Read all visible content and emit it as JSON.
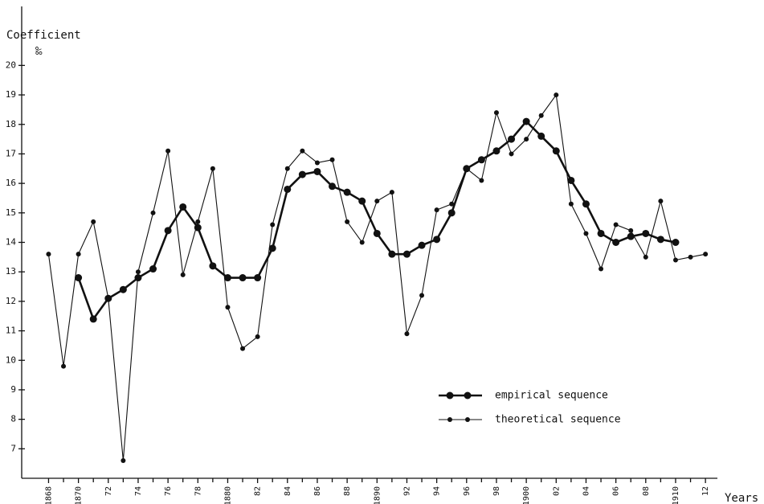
{
  "chart_data": {
    "type": "line",
    "y_label": "Coefficient",
    "y_unit": "‰",
    "x_label": "Years",
    "x": [
      1868,
      1869,
      1870,
      1871,
      1872,
      1873,
      1874,
      1875,
      1876,
      1877,
      1878,
      1879,
      1880,
      1881,
      1882,
      1883,
      1884,
      1885,
      1886,
      1887,
      1888,
      1889,
      1890,
      1891,
      1892,
      1893,
      1894,
      1895,
      1896,
      1897,
      1898,
      1899,
      1900,
      1901,
      1902,
      1903,
      1904,
      1905,
      1906,
      1907,
      1908,
      1909,
      1910,
      1911,
      1912
    ],
    "series": [
      {
        "name": "empirical sequence",
        "color": "#111111",
        "width": 2.6,
        "dot": 4.5,
        "values": [
          null,
          null,
          12.8,
          11.4,
          12.1,
          12.4,
          12.8,
          13.1,
          14.4,
          15.2,
          14.5,
          13.2,
          12.8,
          12.8,
          12.8,
          13.8,
          15.8,
          16.3,
          16.4,
          15.9,
          15.7,
          15.4,
          14.3,
          13.6,
          13.6,
          13.9,
          14.1,
          15.0,
          16.5,
          16.8,
          17.1,
          17.5,
          18.1,
          17.6,
          17.1,
          16.1,
          15.3,
          14.3,
          14.0,
          14.2,
          14.3,
          14.1,
          14.0,
          null,
          null
        ]
      },
      {
        "name": "theoretical sequence",
        "color": "#111111",
        "width": 1.1,
        "dot": 3,
        "values": [
          13.6,
          9.8,
          13.6,
          14.7,
          12.1,
          6.6,
          13.0,
          15.0,
          17.1,
          12.9,
          14.7,
          16.5,
          11.8,
          10.4,
          10.8,
          14.6,
          16.5,
          17.1,
          16.7,
          16.8,
          14.7,
          14.0,
          15.4,
          15.7,
          10.9,
          12.2,
          15.1,
          15.3,
          16.5,
          16.1,
          18.4,
          17.0,
          17.5,
          18.3,
          19.0,
          15.3,
          14.3,
          13.1,
          14.6,
          14.4,
          13.5,
          15.4,
          13.4,
          13.5,
          13.6
        ]
      }
    ],
    "xlim": [
      1866.2,
      1912.8
    ],
    "xticks": [
      {
        "value": 1868,
        "label": "1868"
      },
      {
        "value": 1870,
        "label": "1870"
      },
      {
        "value": 1872,
        "label": "72"
      },
      {
        "value": 1874,
        "label": "74"
      },
      {
        "value": 1876,
        "label": "76"
      },
      {
        "value": 1878,
        "label": "78"
      },
      {
        "value": 1880,
        "label": "1880"
      },
      {
        "value": 1882,
        "label": "82"
      },
      {
        "value": 1884,
        "label": "84"
      },
      {
        "value": 1886,
        "label": "86"
      },
      {
        "value": 1888,
        "label": "88"
      },
      {
        "value": 1890,
        "label": "1890"
      },
      {
        "value": 1892,
        "label": "92"
      },
      {
        "value": 1894,
        "label": "94"
      },
      {
        "value": 1896,
        "label": "96"
      },
      {
        "value": 1898,
        "label": "98"
      },
      {
        "value": 1900,
        "label": "1900"
      },
      {
        "value": 1902,
        "label": "02"
      },
      {
        "value": 1904,
        "label": "04"
      },
      {
        "value": 1906,
        "label": "06"
      },
      {
        "value": 1908,
        "label": "08"
      },
      {
        "value": 1910,
        "label": "1910"
      },
      {
        "value": 1912,
        "label": "12"
      }
    ],
    "xminor_ticks": [
      1869,
      1871,
      1873,
      1875,
      1877,
      1879,
      1881,
      1883,
      1885,
      1887,
      1889,
      1891,
      1893,
      1895,
      1897,
      1899,
      1901,
      1903,
      1905,
      1907,
      1909,
      1911
    ],
    "ylim": [
      6,
      22
    ],
    "yticks": [
      7,
      8,
      9,
      10,
      11,
      12,
      13,
      14,
      15,
      16,
      17,
      18,
      19,
      20
    ],
    "grid": false
  }
}
